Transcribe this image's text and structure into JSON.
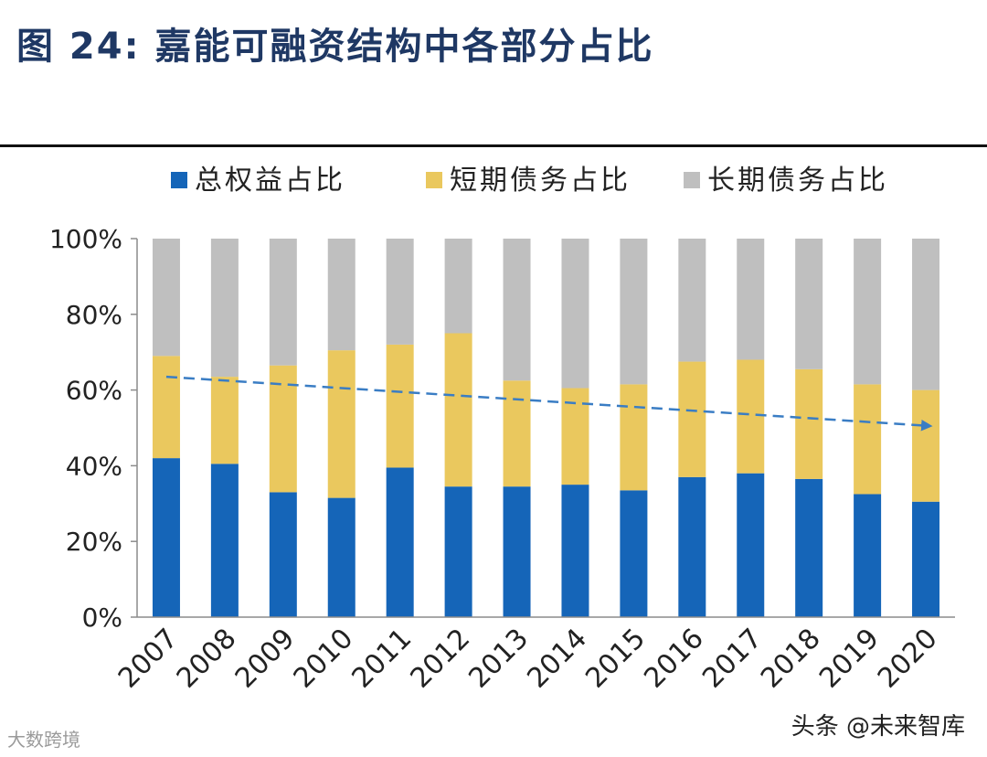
{
  "chart_data": {
    "type": "bar",
    "stacked": true,
    "percent": true,
    "title": "图 24:  嘉能可融资结构中各部分占比",
    "categories": [
      "2007",
      "2008",
      "2009",
      "2010",
      "2011",
      "2012",
      "2013",
      "2014",
      "2015",
      "2016",
      "2017",
      "2018",
      "2019",
      "2020"
    ],
    "series": [
      {
        "name": "总权益占比",
        "color": "#1565b8",
        "values": [
          42,
          40.5,
          33,
          31.5,
          39.5,
          34.5,
          34.5,
          35,
          33.5,
          37,
          38,
          36.5,
          32.5,
          30.5
        ]
      },
      {
        "name": "短期债务占比",
        "color": "#eac85e",
        "values": [
          27,
          23,
          33.5,
          39,
          32.5,
          40.5,
          28,
          25.5,
          28,
          30.5,
          30,
          29,
          29,
          29.5
        ]
      },
      {
        "name": "长期债务占比",
        "color": "#bfbfbf",
        "values": [
          31,
          36.5,
          33.5,
          29.5,
          28,
          25,
          37.5,
          39.5,
          38.5,
          32.5,
          32,
          34.5,
          38.5,
          40
        ]
      }
    ],
    "yticks": [
      "0%",
      "20%",
      "40%",
      "60%",
      "80%",
      "100%"
    ],
    "ylim": [
      0,
      100
    ],
    "xlabel": "",
    "ylabel": "",
    "legend_position": "top",
    "trend_arrow": {
      "from_category": "2007",
      "from_value": 63.5,
      "to_category": "2020",
      "to_value": 50.5,
      "color": "#3a7dc4",
      "style": "dashed"
    }
  },
  "watermark": {
    "left": "大数跨境",
    "right": "头条 @未来智库"
  },
  "colors": {
    "title": "#1f3864"
  }
}
